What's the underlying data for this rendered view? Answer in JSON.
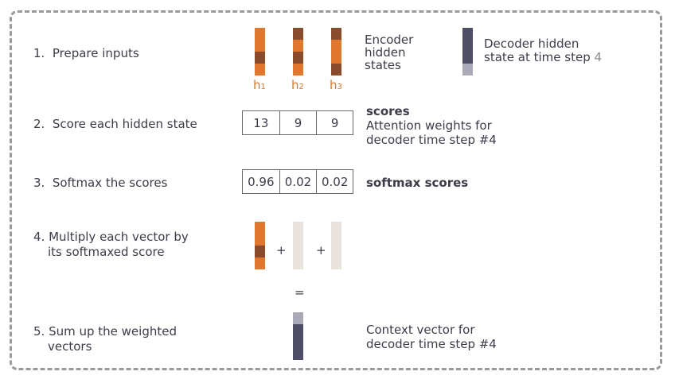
{
  "steps": {
    "s1": "1.  Prepare inputs",
    "s2": "2.  Score each hidden state",
    "s3": "3.  Softmax the scores",
    "s4a": "4. Multiply each vector by",
    "s4b": "its softmaxed score",
    "s5a": "5. Sum up the weighted",
    "s5b": "vectors"
  },
  "labels": {
    "encoder": [
      "Encoder",
      "hidden",
      "states"
    ],
    "decoder_line1": "Decoder hidden",
    "decoder_line2": "state at time step",
    "decoder_step": "4",
    "scores_title": "scores",
    "attn_line1": "Attention weights for",
    "attn_line2": "decoder time step #4",
    "softmax_title": "softmax scores",
    "context_line1": "Context vector for",
    "context_line2": "decoder time step #4"
  },
  "hidden_state_labels": [
    {
      "base": "h",
      "sub": "1"
    },
    {
      "base": "h",
      "sub": "2"
    },
    {
      "base": "h",
      "sub": "3"
    }
  ],
  "scores": [
    "13",
    "9",
    "9"
  ],
  "softmax_scores": [
    "0.96",
    "0.02",
    "0.02"
  ],
  "operators": {
    "plus": "+",
    "equals": "="
  },
  "colors": {
    "orange": "#e0772f",
    "brown": "#8a4a2c",
    "decoder_dark": "#4e4f67",
    "decoder_light": "#a9a9b8",
    "faded": "#e8e2dd",
    "accent_text": "#d9782f"
  }
}
